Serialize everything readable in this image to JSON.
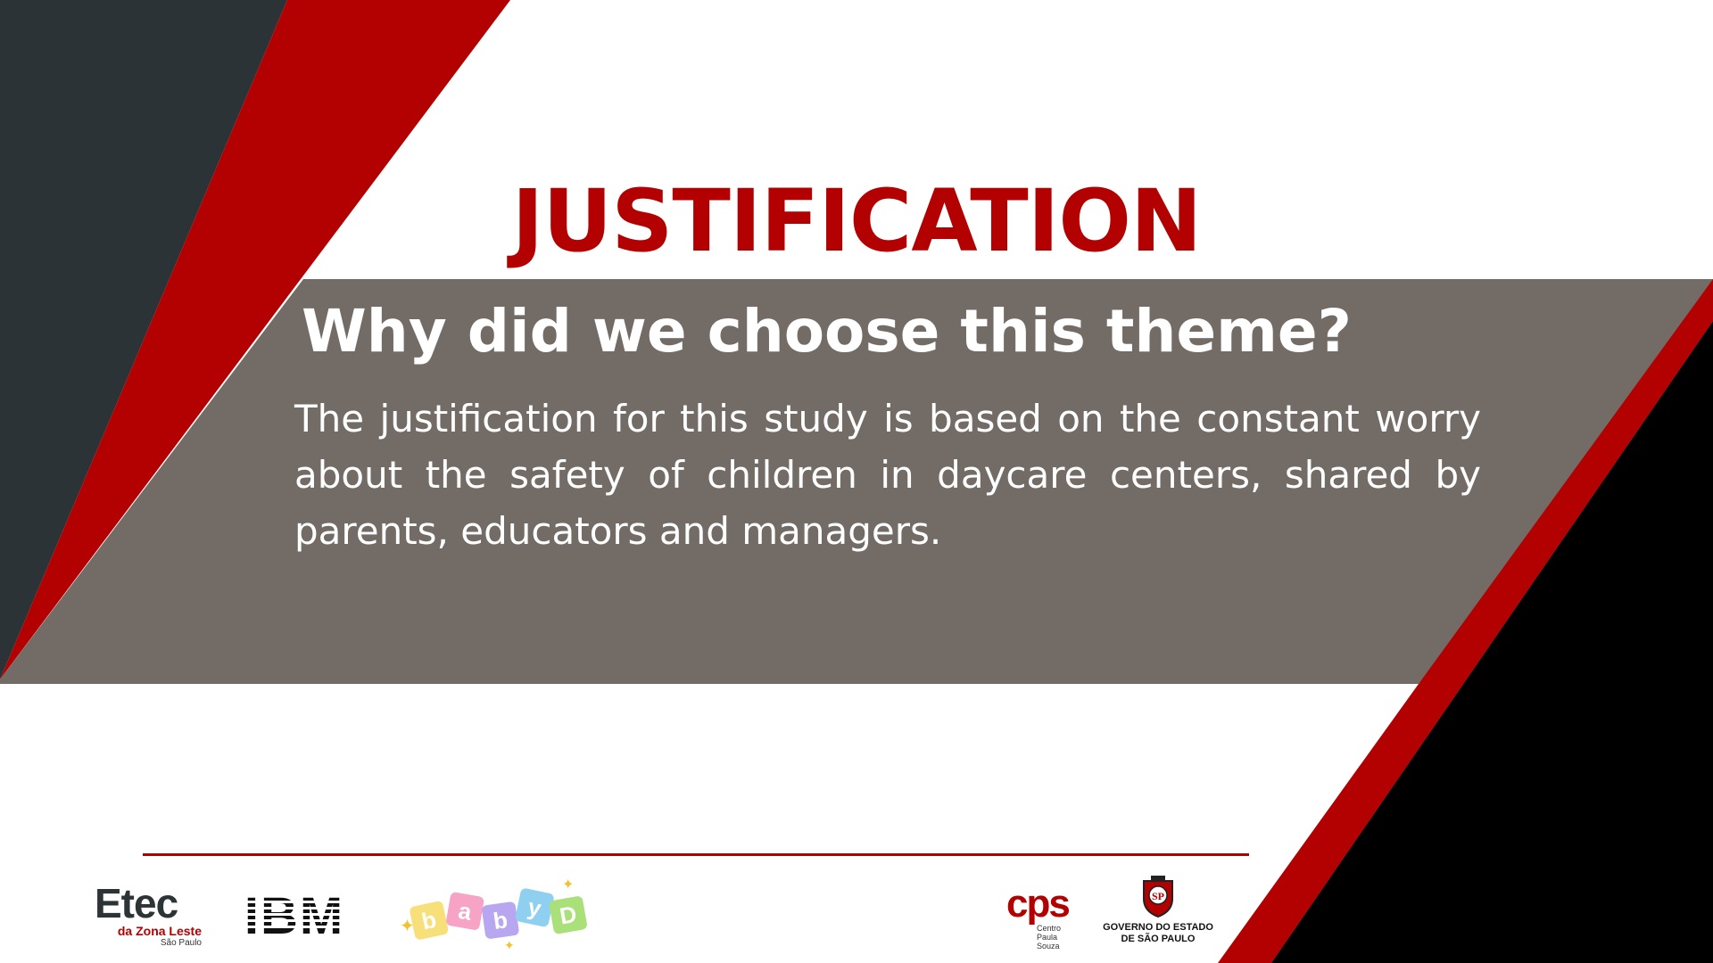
{
  "slide": {
    "title": "JUSTIFICATION",
    "subtitle": "Why did we choose this theme?",
    "body": "The justification for this study is based on the constant worry about the safety of children in daycare centers, shared by parents, educators and managers."
  },
  "colors": {
    "accent_red": "#b30000",
    "dark_slate": "#2b3337",
    "panel_gray": "#736b66",
    "black": "#000000"
  },
  "logos": {
    "etec": {
      "main": "Etec",
      "sub": "da Zona Leste",
      "city": "São Paulo"
    },
    "ibm": {
      "text": "IBM"
    },
    "babyd": {
      "letters": [
        "b",
        "a",
        "b",
        "y",
        "D"
      ]
    },
    "cps": {
      "mark": "cps",
      "sub_line1": "Centro",
      "sub_line2": "Paula Souza"
    },
    "gov": {
      "seal": "SP",
      "line1": "GOVERNO DO ESTADO",
      "line2": "DE SÃO PAULO"
    }
  }
}
